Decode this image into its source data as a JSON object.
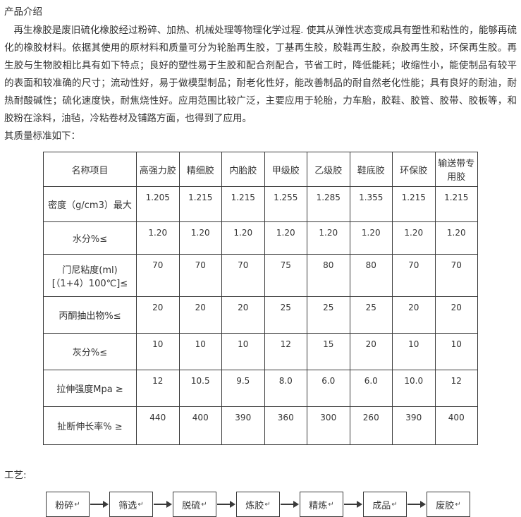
{
  "page": {
    "title": "产品介绍",
    "intro": "再生橡胶是废旧硫化橡胶经过粉碎、加热、机械处理等物理化学过程. 使其从弹性状态变成具有塑性和粘性的，能够再硫化的橡胶材料。依据其使用的原材料和质量可分为轮胎再生胶，丁基再生胶，胶鞋再生胶，杂胶再生胶，环保再生胶。再生胶与生物胶相比具有如下特点；良好的塑性易于生胶和配合剂配合，节省工时，降低能耗；收缩性小，能使制品有较平的表面和较准确的尺寸；流动性好，易于做模型制品；耐老化性好，能改善制品的耐自然老化性能；具有良好的耐油，耐热耐酸碱性；硫化速度快，耐焦烧性好。应用范围比较广泛，主要应用于轮胎，力车胎，胶鞋、胶管、胶带、胶板等，和胶粉在涂料，油毡，冷粘卷材及铺路方面，也得到了应用。",
    "table_caption": "其质量标准如下：",
    "process_label": "工艺:"
  },
  "table": {
    "headers": [
      "名称项目",
      "高强力胶",
      "精细胶",
      "内胎胶",
      "甲级胶",
      "乙级胶",
      "鞋底胶",
      "环保胶",
      "输送带专用胶"
    ],
    "rows": [
      {
        "label": "密度（g/cm3）最大",
        "values": [
          "1.205",
          "1.215",
          "1.215",
          "1.255",
          "1.285",
          "1.355",
          "1.215",
          "1.215"
        ]
      },
      {
        "label": "水分%≤",
        "values": [
          "1.20",
          "1.20",
          "1.20",
          "1.20",
          "1.20",
          "1.20",
          "1.20",
          "1.20"
        ]
      },
      {
        "label": "门尼粘度(ml)[（1+4）100℃]≤",
        "values": [
          "70",
          "70",
          "70",
          "75",
          "80",
          "80",
          "70",
          "70"
        ]
      },
      {
        "label": "丙酮抽出物%≤",
        "values": [
          "20",
          "20",
          "20",
          "25",
          "25",
          "25",
          "20",
          "20"
        ]
      },
      {
        "label": "灰分%≤",
        "values": [
          "10",
          "10",
          "10",
          "12",
          "15",
          "20",
          "10",
          "10"
        ]
      },
      {
        "label": "拉伸强度Mpa ≥",
        "values": [
          "12",
          "10.5",
          "9.5",
          "8.0",
          "6.0",
          "6.0",
          "10.0",
          "12"
        ]
      },
      {
        "label": "扯断伸长率% ≥",
        "values": [
          "440",
          "400",
          "390",
          "360",
          "300",
          "260",
          "390",
          "400"
        ]
      }
    ]
  },
  "flow": {
    "steps": [
      "粉碎",
      "筛选",
      "脱硫",
      "炼胶",
      "精炼",
      "成品",
      "废胶"
    ],
    "paragraph_mark": "↵"
  },
  "colors": {
    "text": "#333333",
    "border": "#3a3a3a",
    "background": "#ffffff"
  }
}
